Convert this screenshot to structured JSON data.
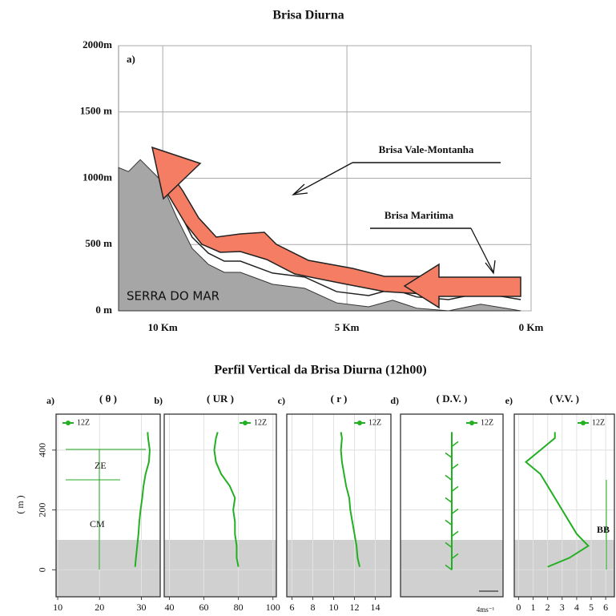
{
  "chart_data": [
    {
      "type": "area",
      "title": "Brisa Diurna",
      "panel_label": "a)",
      "x": [
        11.2,
        10.93,
        10.61,
        10.07,
        9.63,
        9.2,
        8.76,
        8.33,
        7.89,
        7.02,
        6.15,
        5.28,
        4.41,
        3.76,
        3.11,
        2.24,
        1.37,
        0.28
      ],
      "values": [
        1080,
        1050,
        1140,
        990,
        710,
        470,
        350,
        290,
        290,
        200,
        170,
        60,
        30,
        80,
        20,
        0,
        50,
        0
      ],
      "color": "#a6a6a6",
      "xlim": [
        11.2,
        0
      ],
      "xticks": [
        {
          "value": 10,
          "label": "10 Km"
        },
        {
          "value": 5,
          "label": "5 Km"
        },
        {
          "value": 0,
          "label": "0 Km"
        }
      ],
      "ylim": [
        0,
        2000
      ],
      "yticks": [
        {
          "value": 0,
          "label": "0 m"
        },
        {
          "value": 500,
          "label": "500 m"
        },
        {
          "value": 1000,
          "label": "1000m"
        },
        {
          "value": 1500,
          "label": "1500 m"
        },
        {
          "value": 2000,
          "label": "2000m"
        }
      ],
      "grid": true,
      "annotations": [
        "SERRA DO MAR",
        "Brisa Vale-Montanha",
        "Brisa Maritima"
      ]
    },
    {
      "type": "profile",
      "section_title": "Perfil Vertical da Brisa Diurna (12h00)",
      "panel_label": "a)",
      "subtitle": "( θ )",
      "ylabel": "( m )",
      "y": [
        10,
        40,
        80,
        120,
        160,
        200,
        240,
        280,
        320,
        360,
        400,
        440,
        460
      ],
      "series": [
        {
          "name": "12Z",
          "color": "#22b022",
          "values": [
            28.5,
            28.7,
            29,
            29.3,
            29.5,
            29.8,
            30.2,
            30.5,
            31,
            31.8,
            32,
            31.6,
            31.5
          ]
        }
      ],
      "legend": "upper left",
      "xlim": [
        9.6,
        34.5
      ],
      "xticks": [
        10,
        20,
        30
      ],
      "ylim": [
        -90,
        520
      ],
      "yticks": [
        0,
        200,
        400
      ],
      "shade_top": 100,
      "annotations": [
        "ZE",
        "CM"
      ]
    },
    {
      "type": "profile",
      "panel_label": "b)",
      "subtitle": "( UR )",
      "y": [
        10,
        40,
        80,
        120,
        160,
        200,
        240,
        280,
        320,
        360,
        400,
        440,
        460
      ],
      "series": [
        {
          "name": "12Z",
          "color": "#22b022",
          "values": [
            80,
            79,
            79,
            78,
            78,
            77,
            78,
            75,
            70,
            67,
            66,
            67,
            68
          ]
        }
      ],
      "legend": "upper right",
      "xlim": [
        37,
        102
      ],
      "xticks": [
        40,
        60,
        80,
        100
      ],
      "ylim": [
        -90,
        520
      ],
      "shade_top": 100
    },
    {
      "type": "profile",
      "panel_label": "c)",
      "subtitle": "( r )",
      "y": [
        10,
        40,
        80,
        120,
        160,
        200,
        240,
        280,
        320,
        360,
        400,
        440,
        460
      ],
      "series": [
        {
          "name": "12Z",
          "color": "#22b022",
          "values": [
            12.5,
            12.3,
            12.2,
            12,
            11.8,
            11.6,
            11.5,
            11.2,
            11,
            10.8,
            10.7,
            10.8,
            10.7
          ]
        }
      ],
      "legend": "upper right",
      "xlim": [
        5.5,
        15.5
      ],
      "xticks": [
        6,
        8,
        10,
        12,
        14
      ],
      "ylim": [
        -90,
        520
      ],
      "shade_top": 100
    },
    {
      "type": "profile",
      "panel_label": "d)",
      "subtitle": "( D.V. )",
      "series": [
        {
          "name": "12Z",
          "color": "#22b022"
        }
      ],
      "legend": "upper right",
      "ylim": [
        -90,
        520
      ],
      "shade_top": 100,
      "annotations": [
        "4ms⁻¹"
      ]
    },
    {
      "type": "profile",
      "panel_label": "e)",
      "subtitle": "( V.V. )",
      "y": [
        10,
        40,
        80,
        120,
        160,
        200,
        240,
        280,
        320,
        360,
        400,
        440,
        460
      ],
      "series": [
        {
          "name": "12Z",
          "color": "#22b022",
          "values": [
            2,
            3.5,
            4.8,
            4,
            3.5,
            3,
            2.5,
            2,
            1.5,
            0.5,
            1.5,
            2.5,
            2.5
          ]
        }
      ],
      "legend": "upper right",
      "xlim": [
        -0.3,
        6.6
      ],
      "xticks": [
        0,
        1,
        2,
        3,
        4,
        5,
        6
      ],
      "ylim": [
        -90,
        520
      ],
      "shade_top": 100,
      "annotations": [
        "BB"
      ]
    }
  ]
}
